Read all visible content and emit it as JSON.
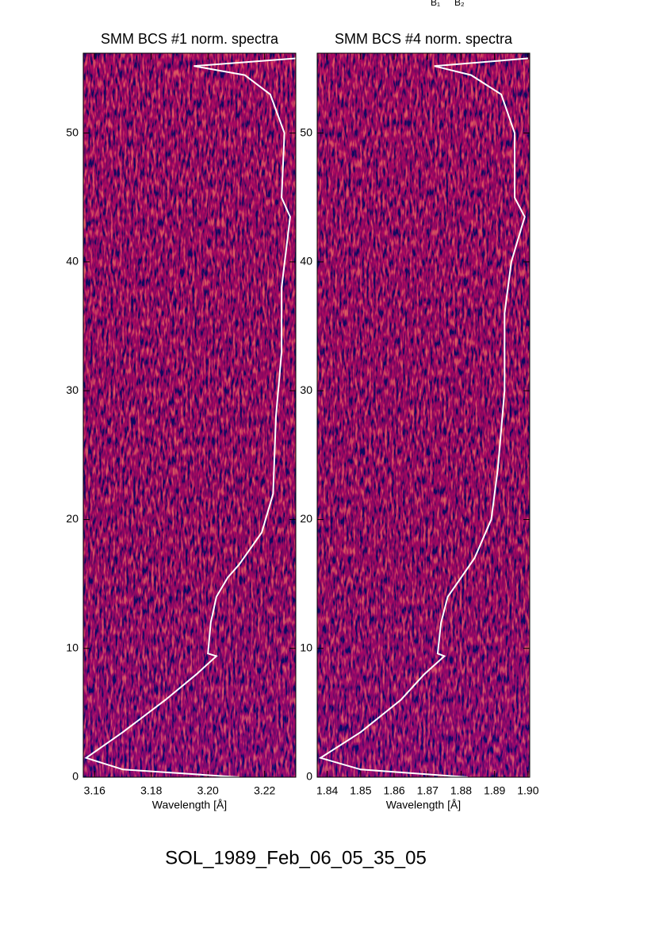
{
  "chart_data": [
    {
      "type": "spectrogram",
      "title": "SMM BCS #1 norm. spectra",
      "xlabel": "Wavelength [Å]",
      "xlim": [
        3.156,
        3.231
      ],
      "xticks": [
        3.16,
        3.18,
        {
          "value": 3.2,
          "label": "3.20"
        },
        3.22
      ],
      "ylim": [
        0,
        56.2
      ],
      "yticks": [
        0,
        10,
        20,
        30,
        40,
        50
      ],
      "line": {
        "color": "#ffffff",
        "x": [
          3.211,
          3.17,
          3.157,
          3.17,
          3.185,
          3.196,
          3.203,
          3.2,
          3.201,
          3.203,
          3.207,
          3.211,
          3.219,
          3.223,
          3.224,
          3.226,
          3.226,
          3.229,
          3.226,
          3.227,
          3.222,
          3.213,
          3.195,
          3.231
        ],
        "y": [
          0,
          0.6,
          1.5,
          3.5,
          6,
          8,
          9.4,
          9.6,
          12,
          14,
          15.5,
          16.5,
          19,
          22,
          28,
          33,
          38,
          43.5,
          45,
          50,
          53,
          54.5,
          55.2,
          55.8
        ]
      },
      "annotations": []
    },
    {
      "type": "spectrogram",
      "title": "SMM BCS #4 norm. spectra",
      "xlabel": "Wavelength [Å]",
      "xlim": [
        1.837,
        1.9005
      ],
      "xticks": [
        1.84,
        1.85,
        1.86,
        1.87,
        1.88,
        1.89,
        {
          "value": 1.9,
          "label": "1.90"
        }
      ],
      "ylim": [
        0,
        56.2
      ],
      "yticks": [
        0,
        10,
        20,
        30,
        40,
        50
      ],
      "line": {
        "color": "#ffffff",
        "x": [
          1.882,
          1.85,
          1.838,
          1.85,
          1.862,
          1.869,
          1.875,
          1.873,
          1.874,
          1.876,
          1.88,
          1.884,
          1.889,
          1.891,
          1.893,
          1.893,
          1.895,
          1.899,
          1.896,
          1.896,
          1.892,
          1.883,
          1.872,
          1.9
        ],
        "y": [
          0,
          0.6,
          1.5,
          3.5,
          6,
          8,
          9.4,
          9.6,
          12,
          14,
          15.5,
          17,
          20,
          24,
          30,
          36,
          40,
          43.5,
          45,
          50,
          53,
          54.5,
          55.2,
          55.8
        ]
      }
    }
  ],
  "top_labels": [
    "B₁",
    "B₂"
  ],
  "caption": "SOL_1989_Feb_06_05_35_05"
}
